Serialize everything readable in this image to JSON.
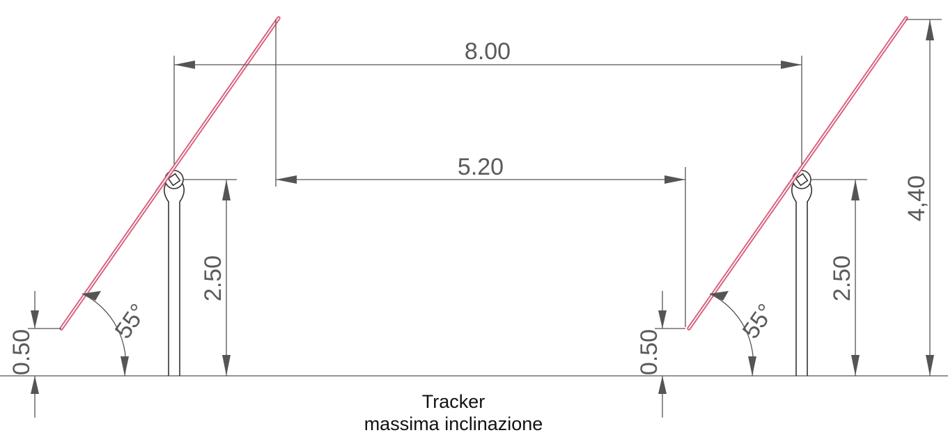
{
  "dimensions": {
    "row_spacing": "8.00",
    "free_gap": "5.20",
    "pivot_height_left": "2.50",
    "pivot_height_right": "2.50",
    "max_height": "4,40",
    "min_clearance_left": "0.50",
    "min_clearance_right": "0.50",
    "tilt_angle_left": "55°",
    "tilt_angle_right": "55°"
  },
  "caption": {
    "line1": "Tracker",
    "line2": "massima inclinazione"
  },
  "colors": {
    "panel": "#d9607e",
    "dimension_lines": "#555555",
    "text": "#5a5a5a"
  }
}
